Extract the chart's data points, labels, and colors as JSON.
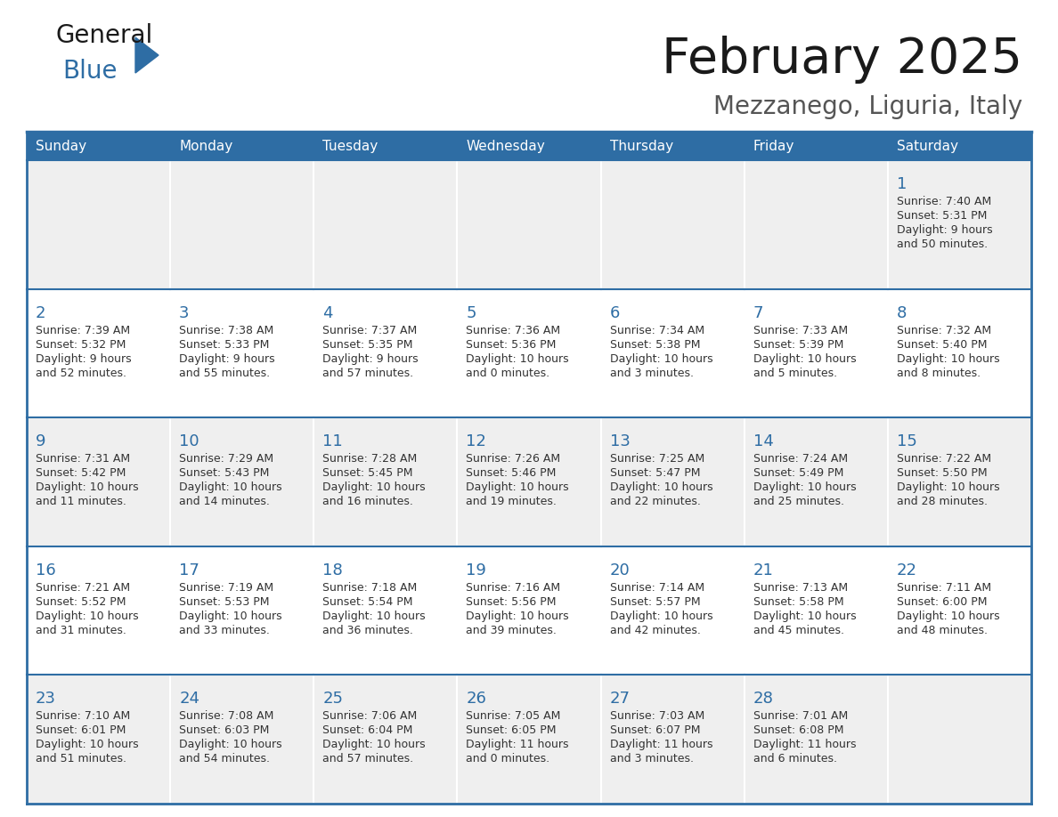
{
  "title": "February 2025",
  "subtitle": "Mezzanego, Liguria, Italy",
  "days_of_week": [
    "Sunday",
    "Monday",
    "Tuesday",
    "Wednesday",
    "Thursday",
    "Friday",
    "Saturday"
  ],
  "header_bg": "#2e6da4",
  "header_text": "#ffffff",
  "cell_bg_odd": "#efefef",
  "cell_bg_even": "#ffffff",
  "border_color": "#2e6da4",
  "text_color": "#333333",
  "day_number_color": "#2e6da4",
  "title_color": "#1a1a1a",
  "subtitle_color": "#555555",
  "logo_general_color": "#1a1a1a",
  "logo_blue_color": "#2e6da4",
  "calendar_data": [
    [
      null,
      null,
      null,
      null,
      null,
      null,
      {
        "day": 1,
        "sunrise": "7:40 AM",
        "sunset": "5:31 PM",
        "daylight": "9 hours and 50 minutes."
      }
    ],
    [
      {
        "day": 2,
        "sunrise": "7:39 AM",
        "sunset": "5:32 PM",
        "daylight": "9 hours and 52 minutes."
      },
      {
        "day": 3,
        "sunrise": "7:38 AM",
        "sunset": "5:33 PM",
        "daylight": "9 hours and 55 minutes."
      },
      {
        "day": 4,
        "sunrise": "7:37 AM",
        "sunset": "5:35 PM",
        "daylight": "9 hours and 57 minutes."
      },
      {
        "day": 5,
        "sunrise": "7:36 AM",
        "sunset": "5:36 PM",
        "daylight": "10 hours and 0 minutes."
      },
      {
        "day": 6,
        "sunrise": "7:34 AM",
        "sunset": "5:38 PM",
        "daylight": "10 hours and 3 minutes."
      },
      {
        "day": 7,
        "sunrise": "7:33 AM",
        "sunset": "5:39 PM",
        "daylight": "10 hours and 5 minutes."
      },
      {
        "day": 8,
        "sunrise": "7:32 AM",
        "sunset": "5:40 PM",
        "daylight": "10 hours and 8 minutes."
      }
    ],
    [
      {
        "day": 9,
        "sunrise": "7:31 AM",
        "sunset": "5:42 PM",
        "daylight": "10 hours and 11 minutes."
      },
      {
        "day": 10,
        "sunrise": "7:29 AM",
        "sunset": "5:43 PM",
        "daylight": "10 hours and 14 minutes."
      },
      {
        "day": 11,
        "sunrise": "7:28 AM",
        "sunset": "5:45 PM",
        "daylight": "10 hours and 16 minutes."
      },
      {
        "day": 12,
        "sunrise": "7:26 AM",
        "sunset": "5:46 PM",
        "daylight": "10 hours and 19 minutes."
      },
      {
        "day": 13,
        "sunrise": "7:25 AM",
        "sunset": "5:47 PM",
        "daylight": "10 hours and 22 minutes."
      },
      {
        "day": 14,
        "sunrise": "7:24 AM",
        "sunset": "5:49 PM",
        "daylight": "10 hours and 25 minutes."
      },
      {
        "day": 15,
        "sunrise": "7:22 AM",
        "sunset": "5:50 PM",
        "daylight": "10 hours and 28 minutes."
      }
    ],
    [
      {
        "day": 16,
        "sunrise": "7:21 AM",
        "sunset": "5:52 PM",
        "daylight": "10 hours and 31 minutes."
      },
      {
        "day": 17,
        "sunrise": "7:19 AM",
        "sunset": "5:53 PM",
        "daylight": "10 hours and 33 minutes."
      },
      {
        "day": 18,
        "sunrise": "7:18 AM",
        "sunset": "5:54 PM",
        "daylight": "10 hours and 36 minutes."
      },
      {
        "day": 19,
        "sunrise": "7:16 AM",
        "sunset": "5:56 PM",
        "daylight": "10 hours and 39 minutes."
      },
      {
        "day": 20,
        "sunrise": "7:14 AM",
        "sunset": "5:57 PM",
        "daylight": "10 hours and 42 minutes."
      },
      {
        "day": 21,
        "sunrise": "7:13 AM",
        "sunset": "5:58 PM",
        "daylight": "10 hours and 45 minutes."
      },
      {
        "day": 22,
        "sunrise": "7:11 AM",
        "sunset": "6:00 PM",
        "daylight": "10 hours and 48 minutes."
      }
    ],
    [
      {
        "day": 23,
        "sunrise": "7:10 AM",
        "sunset": "6:01 PM",
        "daylight": "10 hours and 51 minutes."
      },
      {
        "day": 24,
        "sunrise": "7:08 AM",
        "sunset": "6:03 PM",
        "daylight": "10 hours and 54 minutes."
      },
      {
        "day": 25,
        "sunrise": "7:06 AM",
        "sunset": "6:04 PM",
        "daylight": "10 hours and 57 minutes."
      },
      {
        "day": 26,
        "sunrise": "7:05 AM",
        "sunset": "6:05 PM",
        "daylight": "11 hours and 0 minutes."
      },
      {
        "day": 27,
        "sunrise": "7:03 AM",
        "sunset": "6:07 PM",
        "daylight": "11 hours and 3 minutes."
      },
      {
        "day": 28,
        "sunrise": "7:01 AM",
        "sunset": "6:08 PM",
        "daylight": "11 hours and 6 minutes."
      },
      null
    ]
  ]
}
